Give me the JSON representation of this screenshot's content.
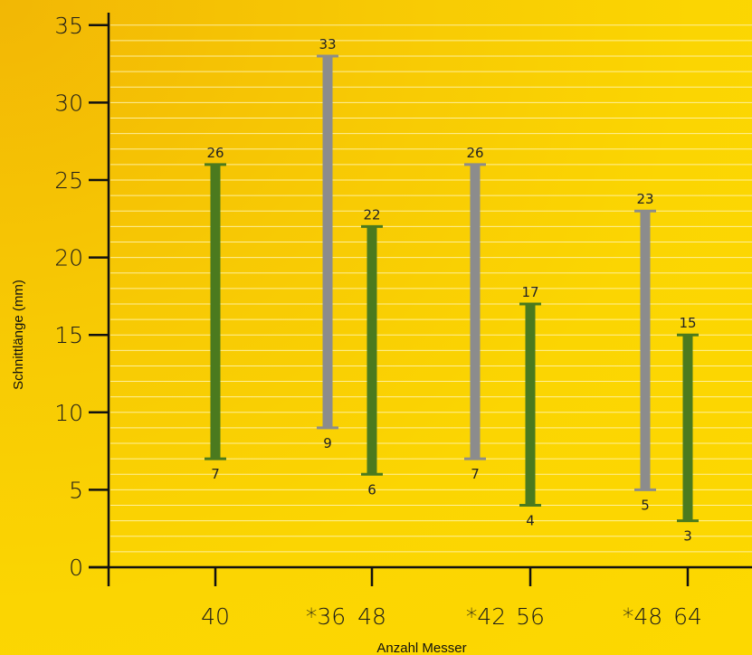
{
  "chart_data": {
    "type": "bar",
    "subtype": "floating-range",
    "xlabel": "Anzahl Messer",
    "ylabel": "Schnittlänge (mm)",
    "ylim": [
      0,
      35
    ],
    "yticks": [
      0,
      5,
      10,
      15,
      20,
      25,
      30,
      35
    ],
    "grid": true,
    "legend": "none",
    "colors": {
      "green": "#4b7a1e",
      "gray": "#8c8c8c",
      "grid": "#fff6b5",
      "axis": "#111111"
    },
    "x_tick_labels": [
      "40",
      "*36",
      "48",
      "*42",
      "56",
      "*48",
      "64"
    ],
    "bars": [
      {
        "label": "40",
        "low": 7,
        "high": 26,
        "color": "green"
      },
      {
        "label": "*36",
        "low": 9,
        "high": 33,
        "color": "gray"
      },
      {
        "label": "48",
        "low": 6,
        "high": 22,
        "color": "green"
      },
      {
        "label": "*42",
        "low": 7,
        "high": 26,
        "color": "gray"
      },
      {
        "label": "56",
        "low": 4,
        "high": 17,
        "color": "green"
      },
      {
        "label": "*48",
        "low": 5,
        "high": 23,
        "color": "gray"
      },
      {
        "label": "64",
        "low": 3,
        "high": 15,
        "color": "green"
      }
    ]
  }
}
